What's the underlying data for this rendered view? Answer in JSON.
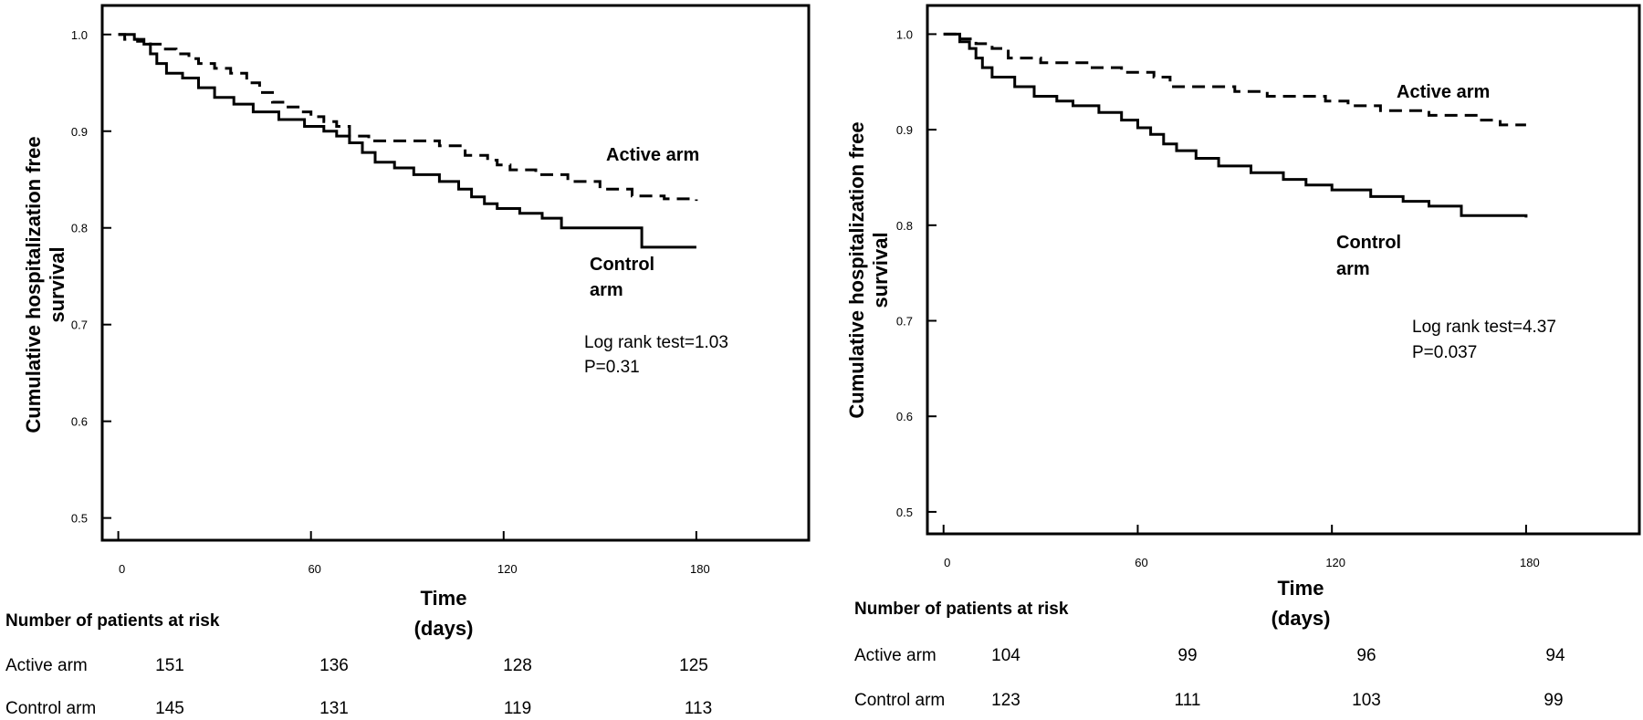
{
  "chart_data": [
    {
      "type": "line",
      "title": "",
      "xlabel": "Time",
      "xlabel_unit": "(days)",
      "ylabel": "Cumulative hospitalization free",
      "ylabel_line2": "survival",
      "xlim": [
        -5,
        215
      ],
      "ylim": [
        0.477,
        1.03
      ],
      "x_ticks": [
        0,
        60,
        120,
        180
      ],
      "y_ticks": [
        0.5,
        0.6,
        0.7,
        0.8,
        0.9,
        1.0
      ],
      "series": [
        {
          "name": "Active arm",
          "style": "dashed",
          "points": [
            [
              0,
              1.0
            ],
            [
              2,
              0.995
            ],
            [
              6,
              0.993
            ],
            [
              10,
              0.99
            ],
            [
              14,
              0.985
            ],
            [
              18,
              0.98
            ],
            [
              22,
              0.975
            ],
            [
              25,
              0.97
            ],
            [
              30,
              0.965
            ],
            [
              35,
              0.96
            ],
            [
              40,
              0.95
            ],
            [
              44,
              0.94
            ],
            [
              48,
              0.93
            ],
            [
              52,
              0.925
            ],
            [
              56,
              0.92
            ],
            [
              60,
              0.915
            ],
            [
              64,
              0.91
            ],
            [
              68,
              0.905
            ],
            [
              72,
              0.895
            ],
            [
              78,
              0.89
            ],
            [
              90,
              0.89
            ],
            [
              100,
              0.885
            ],
            [
              108,
              0.875
            ],
            [
              115,
              0.87
            ],
            [
              118,
              0.865
            ],
            [
              122,
              0.86
            ],
            [
              130,
              0.855
            ],
            [
              140,
              0.848
            ],
            [
              150,
              0.84
            ],
            [
              160,
              0.833
            ],
            [
              170,
              0.83
            ],
            [
              180,
              0.828
            ]
          ]
        },
        {
          "name": "Control arm",
          "style": "solid",
          "points": [
            [
              0,
              1.0
            ],
            [
              5,
              0.995
            ],
            [
              8,
              0.99
            ],
            [
              10,
              0.98
            ],
            [
              12,
              0.97
            ],
            [
              15,
              0.96
            ],
            [
              20,
              0.955
            ],
            [
              25,
              0.945
            ],
            [
              30,
              0.935
            ],
            [
              36,
              0.928
            ],
            [
              42,
              0.92
            ],
            [
              50,
              0.912
            ],
            [
              58,
              0.905
            ],
            [
              64,
              0.9
            ],
            [
              68,
              0.895
            ],
            [
              72,
              0.888
            ],
            [
              76,
              0.878
            ],
            [
              80,
              0.868
            ],
            [
              86,
              0.862
            ],
            [
              92,
              0.855
            ],
            [
              100,
              0.848
            ],
            [
              106,
              0.84
            ],
            [
              110,
              0.832
            ],
            [
              114,
              0.825
            ],
            [
              118,
              0.82
            ],
            [
              125,
              0.815
            ],
            [
              132,
              0.81
            ],
            [
              138,
              0.8
            ],
            [
              150,
              0.8
            ],
            [
              163,
              0.78
            ],
            [
              180,
              0.78
            ]
          ]
        }
      ],
      "annotations": {
        "active_label": "Active arm",
        "control_label_1": "Control",
        "control_label_2": "arm",
        "stat_1": "Log rank test=1.03",
        "stat_2": "P=0.31"
      },
      "risk_table": {
        "header": "Number of patients at risk",
        "rows": [
          {
            "label": "Active arm",
            "values": [
              "151",
              "136",
              "128",
              "125"
            ]
          },
          {
            "label": "Control arm",
            "values": [
              "145",
              "131",
              "119",
              "113"
            ]
          }
        ]
      }
    },
    {
      "type": "line",
      "title": "",
      "xlabel": "Time",
      "xlabel_unit": "(days)",
      "ylabel": "Cumulative hospitalization free",
      "ylabel_line2": "survival",
      "xlim": [
        -5,
        215
      ],
      "ylim": [
        0.477,
        1.03
      ],
      "x_ticks": [
        0,
        60,
        120,
        180
      ],
      "y_ticks": [
        0.5,
        0.6,
        0.7,
        0.8,
        0.9,
        1.0
      ],
      "series": [
        {
          "name": "Active arm",
          "style": "dashed",
          "points": [
            [
              0,
              1.0
            ],
            [
              5,
              0.995
            ],
            [
              10,
              0.99
            ],
            [
              15,
              0.985
            ],
            [
              20,
              0.975
            ],
            [
              30,
              0.97
            ],
            [
              45,
              0.965
            ],
            [
              55,
              0.96
            ],
            [
              65,
              0.955
            ],
            [
              70,
              0.945
            ],
            [
              90,
              0.94
            ],
            [
              100,
              0.935
            ],
            [
              118,
              0.93
            ],
            [
              125,
              0.925
            ],
            [
              135,
              0.92
            ],
            [
              150,
              0.915
            ],
            [
              165,
              0.91
            ],
            [
              172,
              0.905
            ],
            [
              180,
              0.905
            ]
          ]
        },
        {
          "name": "Control arm",
          "style": "solid",
          "points": [
            [
              0,
              1.0
            ],
            [
              5,
              0.992
            ],
            [
              8,
              0.985
            ],
            [
              10,
              0.975
            ],
            [
              12,
              0.965
            ],
            [
              15,
              0.955
            ],
            [
              22,
              0.945
            ],
            [
              28,
              0.935
            ],
            [
              35,
              0.93
            ],
            [
              40,
              0.925
            ],
            [
              48,
              0.918
            ],
            [
              55,
              0.91
            ],
            [
              60,
              0.902
            ],
            [
              64,
              0.895
            ],
            [
              68,
              0.885
            ],
            [
              72,
              0.878
            ],
            [
              78,
              0.87
            ],
            [
              85,
              0.862
            ],
            [
              95,
              0.855
            ],
            [
              105,
              0.848
            ],
            [
              112,
              0.842
            ],
            [
              120,
              0.837
            ],
            [
              132,
              0.83
            ],
            [
              142,
              0.825
            ],
            [
              150,
              0.82
            ],
            [
              160,
              0.81
            ],
            [
              180,
              0.808
            ]
          ]
        }
      ],
      "annotations": {
        "active_label": "Active arm",
        "control_label_1": "Control",
        "control_label_2": "arm",
        "stat_1": "Log rank test=4.37",
        "stat_2": "P=0.037"
      },
      "risk_table": {
        "header": "Number of patients at risk",
        "rows": [
          {
            "label": "Active arm",
            "values": [
              "104",
              "99",
              "96",
              "94"
            ]
          },
          {
            "label": "Control arm",
            "values": [
              "123",
              "111",
              "103",
              "99"
            ]
          }
        ]
      }
    }
  ]
}
